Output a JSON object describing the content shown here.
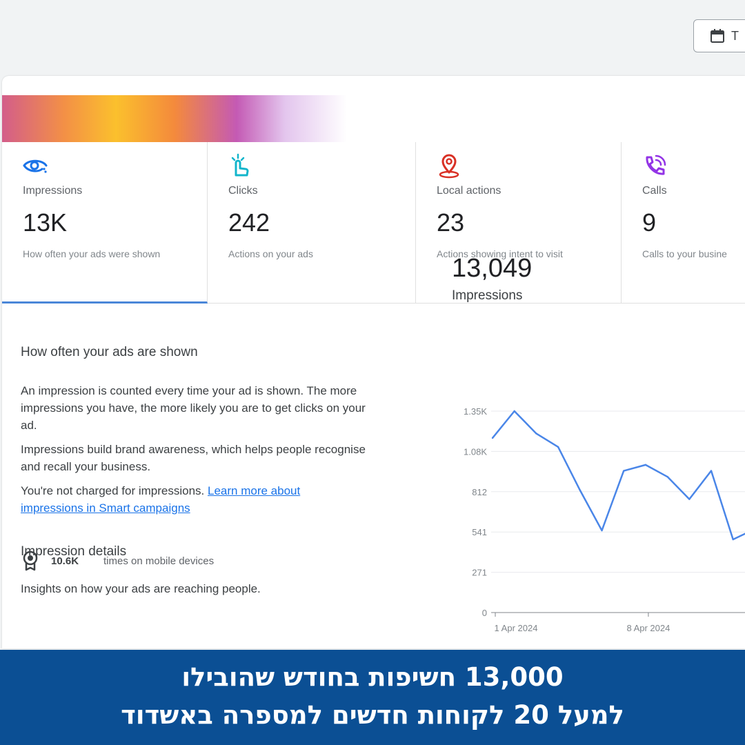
{
  "header": {
    "date_button_label": "T"
  },
  "metrics": [
    {
      "icon": "eye-icon",
      "label": "Impressions",
      "value": "13K",
      "description": "How often your ads were shown",
      "color": "#1a73e8"
    },
    {
      "icon": "tap-icon",
      "label": "Clicks",
      "value": "242",
      "description": "Actions on your ads",
      "color": "#12b5cb"
    },
    {
      "icon": "location-pin-icon",
      "label": "Local actions",
      "value": "23",
      "description": "Actions showing intent to visit",
      "color": "#d93025"
    },
    {
      "icon": "phone-call-icon",
      "label": "Calls",
      "value": "9",
      "description": "Calls to your busine",
      "color": "#9334e6"
    }
  ],
  "details": {
    "heading": "How often your ads are shown",
    "para1": "An impression is counted every time your ad is shown. The more impressions you have, the more likely you are to get clicks on your ad.",
    "para2": "Impressions build brand awareness, which helps people recognise and recall your business.",
    "para3_text": "You're not charged for impressions. ",
    "para3_link": "Learn more about impressions in Smart campaigns",
    "impression_heading": "Impression details",
    "insights": "Insights on how your ads are reaching people.",
    "stat_value": "10.6K",
    "stat_label": "times on mobile devices"
  },
  "summary": {
    "value": "13,049",
    "label": "Impressions"
  },
  "chart_data": {
    "type": "line",
    "y_ticks": [
      "0",
      "271",
      "541",
      "812",
      "1.08K",
      "1.35K"
    ],
    "ylim": [
      0,
      1350
    ],
    "x_tick_labels": [
      {
        "label": "1 Apr 2024",
        "day": 0
      },
      {
        "label": "8 Apr 2024",
        "day": 7
      }
    ],
    "series": [
      {
        "values": [
          1170,
          1350,
          1200,
          1110,
          820,
          550,
          950,
          990,
          910,
          760,
          950,
          490,
          560
        ]
      }
    ],
    "color": "#4a86e8",
    "grid": true
  },
  "banner": {
    "line1": "13,000 חשיפות בחודש שהובילו",
    "line2": "למעל 20 לקוחות חדשים למספרה באשדוד"
  }
}
